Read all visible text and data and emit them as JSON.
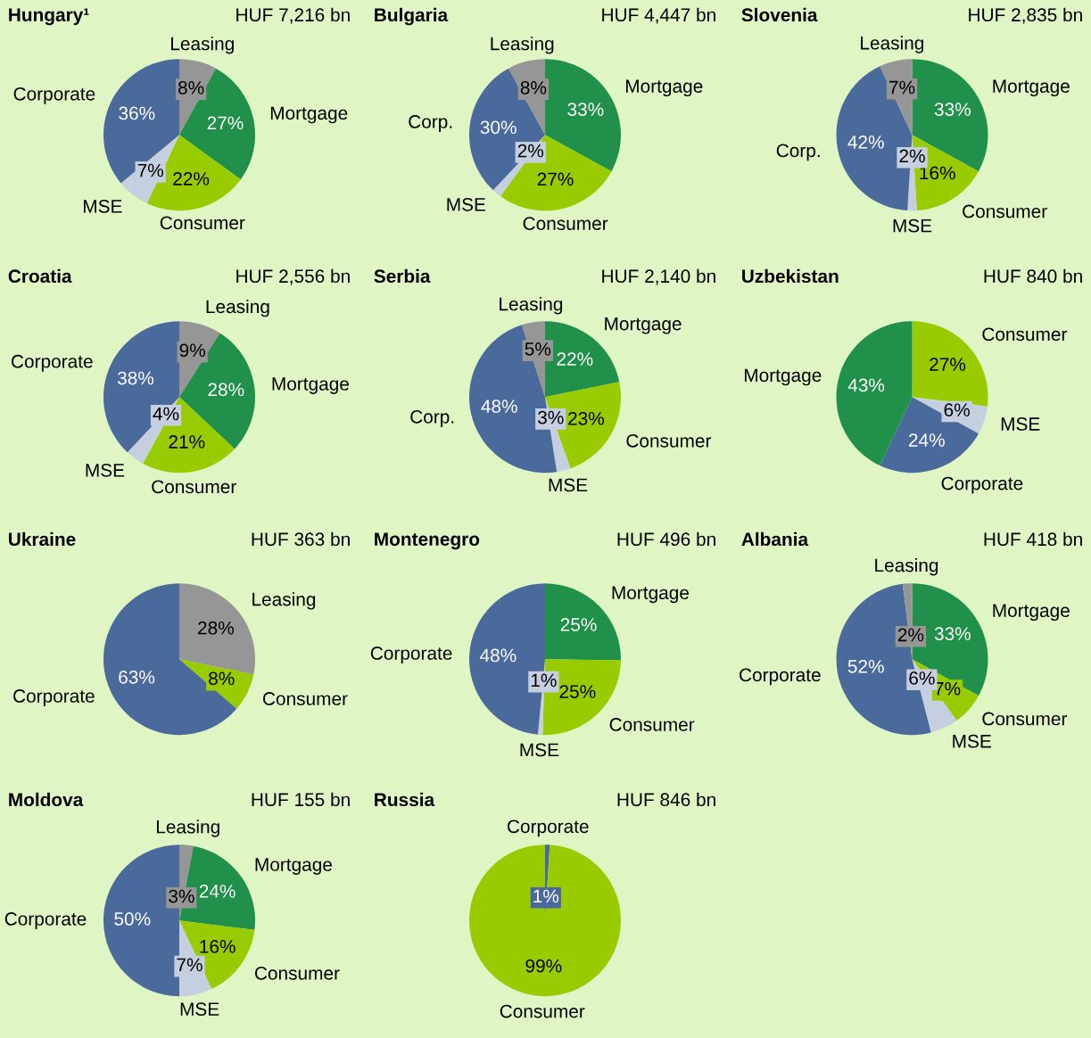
{
  "chart_data": [
    {
      "type": "pie",
      "title": "Hungary¹",
      "subtitle": "HUF 7,216 bn",
      "categories": [
        "Leasing",
        "Mortgage",
        "Consumer",
        "MSE",
        "Corporate"
      ],
      "values": [
        8,
        27,
        22,
        7,
        36
      ],
      "value_labels": [
        "8%",
        "27%",
        "22%",
        "7%",
        "36%"
      ],
      "colors": [
        "#969696",
        "#21904a",
        "#99cc00",
        "#c5cfe0",
        "#4a6a9c"
      ]
    },
    {
      "type": "pie",
      "title": "Bulgaria",
      "subtitle": "HUF 4,447 bn",
      "categories": [
        "Mortgage",
        "Consumer",
        "MSE",
        "Corp.",
        "Leasing"
      ],
      "values": [
        33,
        27,
        2,
        30,
        8
      ],
      "value_labels": [
        "33%",
        "27%",
        "2%",
        "30%",
        "8%"
      ],
      "colors": [
        "#21904a",
        "#99cc00",
        "#c5cfe0",
        "#4a6a9c",
        "#969696"
      ]
    },
    {
      "type": "pie",
      "title": "Slovenia",
      "subtitle": "HUF 2,835 bn",
      "categories": [
        "Mortgage",
        "Consumer",
        "MSE",
        "Corp.",
        "Leasing"
      ],
      "values": [
        33,
        16,
        2,
        42,
        7
      ],
      "value_labels": [
        "33%",
        "16%",
        "2%",
        "42%",
        "7%"
      ],
      "colors": [
        "#21904a",
        "#99cc00",
        "#c5cfe0",
        "#4a6a9c",
        "#969696"
      ]
    },
    {
      "type": "pie",
      "title": "Croatia",
      "subtitle": "HUF 2,556 bn",
      "categories": [
        "Leasing",
        "Mortgage",
        "Consumer",
        "MSE",
        "Corporate"
      ],
      "values": [
        9,
        28,
        21,
        4,
        38
      ],
      "value_labels": [
        "9%",
        "28%",
        "21%",
        "4%",
        "38%"
      ],
      "colors": [
        "#969696",
        "#21904a",
        "#99cc00",
        "#c5cfe0",
        "#4a6a9c"
      ]
    },
    {
      "type": "pie",
      "title": "Serbia",
      "subtitle": "HUF 2,140 bn",
      "categories": [
        "Mortgage",
        "Consumer",
        "MSE",
        "Corp.",
        "Leasing"
      ],
      "values": [
        22,
        23,
        3,
        48,
        5
      ],
      "value_labels": [
        "22%",
        "23%",
        "3%",
        "48%",
        "5%"
      ],
      "colors": [
        "#21904a",
        "#99cc00",
        "#c5cfe0",
        "#4a6a9c",
        "#969696"
      ]
    },
    {
      "type": "pie",
      "title": "Uzbekistan",
      "subtitle": "HUF 840 bn",
      "categories": [
        "Consumer",
        "MSE",
        "Corporate",
        "Mortgage"
      ],
      "values": [
        27,
        6,
        24,
        43
      ],
      "value_labels": [
        "27%",
        "6%",
        "24%",
        "43%"
      ],
      "colors": [
        "#99cc00",
        "#c5cfe0",
        "#4a6a9c",
        "#21904a"
      ]
    },
    {
      "type": "pie",
      "title": "Ukraine",
      "subtitle": "HUF 363 bn",
      "categories": [
        "Leasing",
        "Consumer",
        "Corporate"
      ],
      "values": [
        28,
        8,
        63
      ],
      "value_labels": [
        "28%",
        "8%",
        "63%"
      ],
      "colors": [
        "#969696",
        "#99cc00",
        "#4a6a9c"
      ]
    },
    {
      "type": "pie",
      "title": "Montenegro",
      "subtitle": "HUF 496 bn",
      "categories": [
        "Mortgage",
        "Consumer",
        "MSE",
        "Corporate"
      ],
      "values": [
        25,
        25,
        1,
        48
      ],
      "value_labels": [
        "25%",
        "25%",
        "1%",
        "48%"
      ],
      "colors": [
        "#21904a",
        "#99cc00",
        "#c5cfe0",
        "#4a6a9c"
      ]
    },
    {
      "type": "pie",
      "title": "Albania",
      "subtitle": "HUF 418 bn",
      "categories": [
        "Mortgage",
        "Consumer",
        "MSE",
        "Corporate",
        "Leasing"
      ],
      "values": [
        33,
        7,
        6,
        52,
        2
      ],
      "value_labels": [
        "33%",
        "7%",
        "6%",
        "52%",
        "2%"
      ],
      "colors": [
        "#21904a",
        "#99cc00",
        "#c5cfe0",
        "#4a6a9c",
        "#969696"
      ]
    },
    {
      "type": "pie",
      "title": "Moldova",
      "subtitle": "HUF 155 bn",
      "categories": [
        "Leasing",
        "Mortgage",
        "Consumer",
        "MSE",
        "Corporate"
      ],
      "values": [
        3,
        24,
        16,
        7,
        50
      ],
      "value_labels": [
        "3%",
        "24%",
        "16%",
        "7%",
        "50%"
      ],
      "colors": [
        "#969696",
        "#21904a",
        "#99cc00",
        "#c5cfe0",
        "#4a6a9c"
      ]
    },
    {
      "type": "pie",
      "title": "Russia",
      "subtitle": "HUF 846 bn",
      "categories": [
        "Corporate",
        "Consumer"
      ],
      "values": [
        1,
        99
      ],
      "value_labels": [
        "1%",
        "99%"
      ],
      "colors": [
        "#4a6a9c",
        "#99cc00"
      ]
    }
  ]
}
